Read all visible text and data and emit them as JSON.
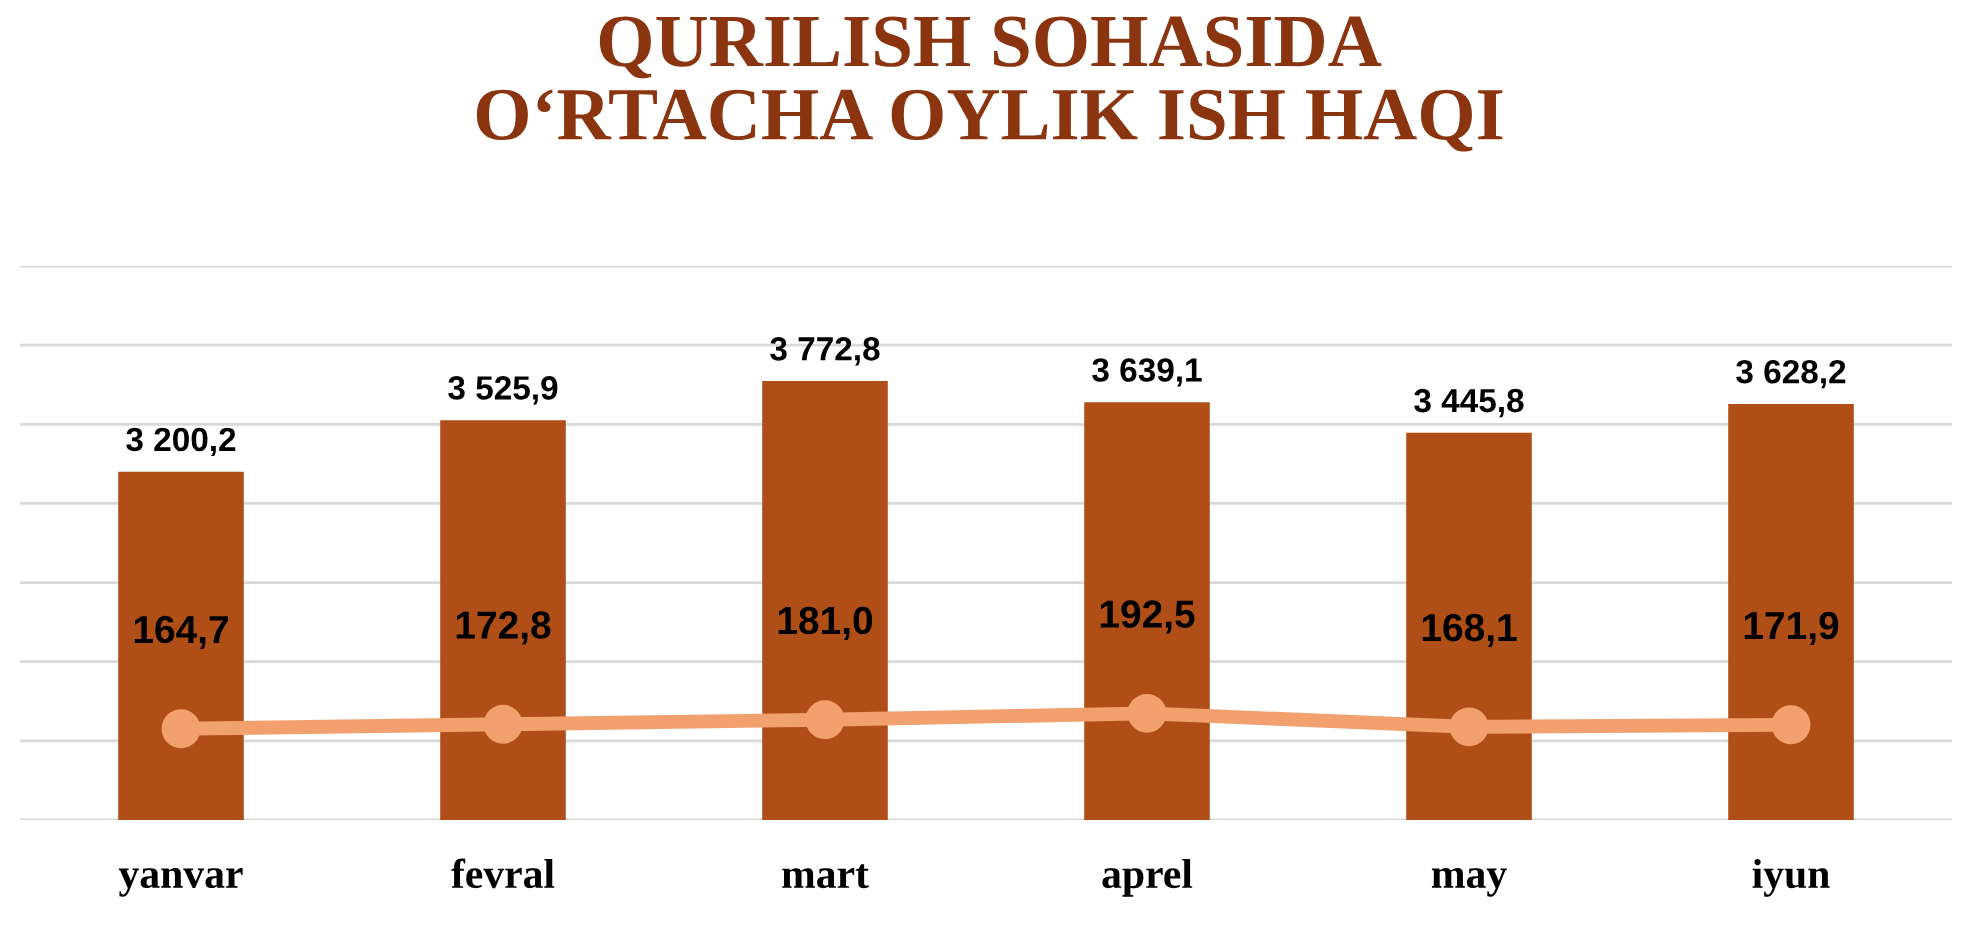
{
  "chart_data": {
    "type": "bar",
    "title": "QURILISH SOHASIDA\nO‘RTACHA OYLIK ISH HAQI",
    "categories": [
      "yanvar",
      "fevral",
      "mart",
      "aprel",
      "may",
      "iyun"
    ],
    "series": [
      {
        "color": "#b04e17",
        "values": [
          3200.2,
          3525.9,
          3772.8,
          3639.1,
          3445.8,
          3628.2
        ],
        "value_labels": [
          "3 200,2",
          "3 525,9",
          "3 772,8",
          "3 639,1",
          "3 445,8",
          "3 628,2"
        ]
      },
      {
        "type": "line",
        "axis": "y2",
        "color": "#f2a16e",
        "values": [
          164.7,
          172.8,
          181.0,
          192.5,
          168.1,
          171.9
        ],
        "value_labels": [
          "164,7",
          "172,8",
          "181,0",
          "192,5",
          "168,1",
          "171,9"
        ]
      }
    ],
    "ylim": [
      1000,
      4500
    ],
    "yticks": [
      {
        "value": 1000,
        "label": null
      },
      {
        "value": 1500,
        "label": null
      },
      {
        "value": 2000,
        "label": null
      },
      {
        "value": 2500,
        "label": null
      },
      {
        "value": 3000,
        "label": null
      },
      {
        "value": 3500,
        "label": null
      },
      {
        "value": 4000,
        "label": null
      },
      {
        "value": 4500,
        "label": null
      }
    ],
    "y2lim": [
      0,
      1000
    ],
    "grid": "y",
    "marker": "circle",
    "tick_labels": "x"
  }
}
